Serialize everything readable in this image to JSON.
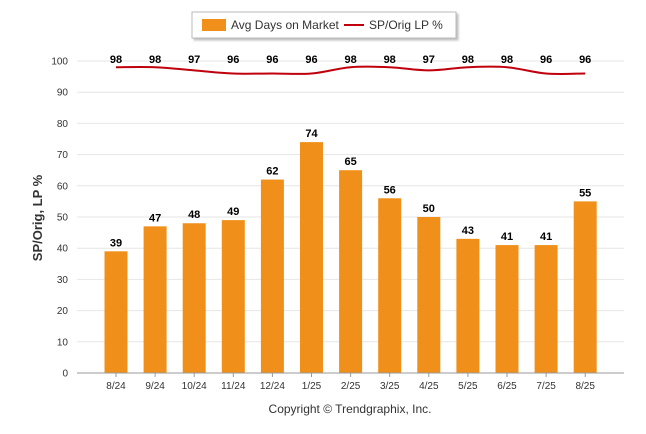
{
  "chart_data": {
    "type": "bar",
    "categories": [
      "8/24",
      "9/24",
      "10/24",
      "11/24",
      "12/24",
      "1/25",
      "2/25",
      "3/25",
      "4/25",
      "5/25",
      "6/25",
      "7/25",
      "8/25"
    ],
    "series": [
      {
        "name": "Avg Days on Market",
        "type": "bar",
        "color": "#f0901a",
        "values": [
          39,
          47,
          48,
          49,
          62,
          74,
          65,
          56,
          50,
          43,
          41,
          41,
          55
        ]
      },
      {
        "name": "SP/Orig LP %",
        "type": "line",
        "color": "#c0000c",
        "values": [
          98,
          98,
          97,
          96,
          96,
          96,
          98,
          98,
          97,
          98,
          98,
          96,
          96
        ]
      }
    ],
    "ylabel": "SP/Orig, LP %",
    "xlabel": "",
    "ylim": [
      0,
      100
    ],
    "yticks": [
      0,
      10,
      20,
      30,
      40,
      50,
      60,
      70,
      80,
      90,
      100
    ],
    "grid": true,
    "legend_position": "top-center",
    "data_labels": true
  },
  "footer": {
    "copyright": "Copyright © Trendgraphix, Inc."
  }
}
